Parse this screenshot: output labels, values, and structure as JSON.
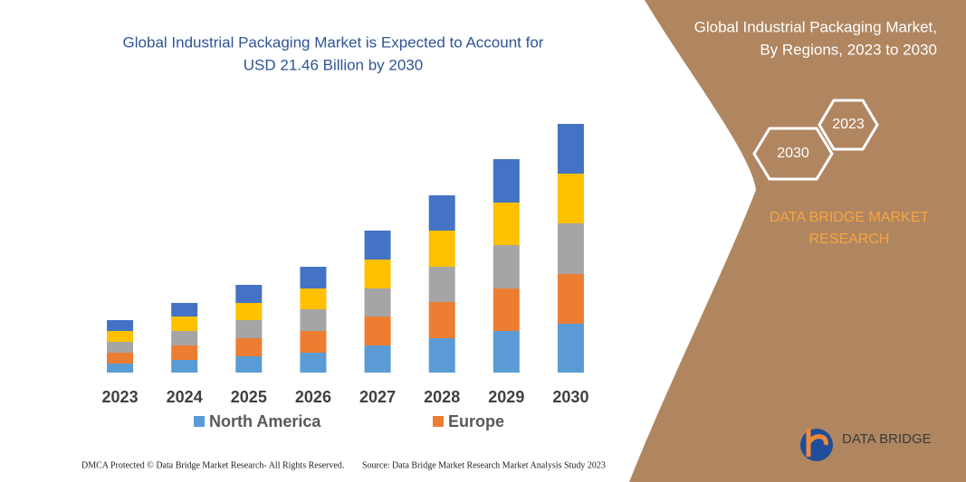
{
  "chart_data": {
    "type": "stacked_bar",
    "title": [
      "Global Industrial Packaging Market is Expected to Account for",
      "USD 21.46 Billion by 2030"
    ],
    "categories": [
      "2023",
      "2024",
      "2025",
      "2026",
      "2027",
      "2028",
      "2029",
      "2030"
    ],
    "series": [
      {
        "name": "North America",
        "color": "#5b9bd5",
        "values": [
          10,
          14,
          18,
          22,
          30,
          38,
          46,
          54
        ]
      },
      {
        "name": "Europe",
        "color": "#ed7d31",
        "values": [
          12,
          16,
          20,
          24,
          32,
          40,
          47,
          55
        ]
      },
      {
        "color": "#a5a5a5",
        "values": [
          12,
          16,
          20,
          24,
          31,
          39,
          48,
          56
        ]
      },
      {
        "color": "#ffc000",
        "values": [
          12,
          16,
          19,
          23,
          32,
          40,
          47,
          55
        ]
      },
      {
        "color": "#4472c4",
        "values": [
          12,
          15,
          20,
          24,
          32,
          39,
          48,
          55
        ]
      }
    ],
    "ylim": [
      0,
      300
    ]
  },
  "panel": {
    "title": [
      "Global Industrial Packaging Market,",
      "By Regions, 2023 to 2030"
    ],
    "badges": [
      "2023",
      "2030"
    ],
    "brand": [
      "DATA BRIDGE MARKET",
      "RESEARCH"
    ],
    "logo": "DATA BRIDGE"
  },
  "footer": {
    "left": "DMCA Protected © Data Bridge Market Research-  All Rights Reserved.",
    "right": "Source: Data Bridge Market Research  Market Analysis Study 2023"
  }
}
